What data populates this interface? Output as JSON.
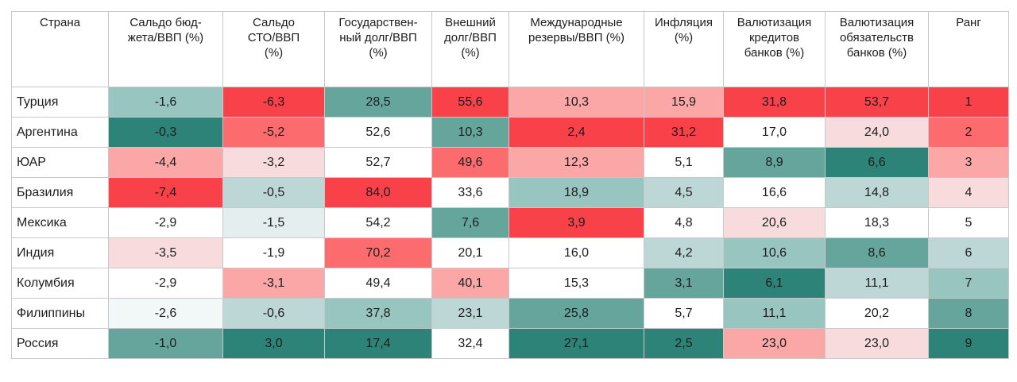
{
  "chart_data": {
    "type": "heatmap",
    "columns": [
      "Страна",
      "Сальдо бюд-\nжета/ВВП (%)",
      "Сальдо\nСТО/ВВП\n(%)",
      "Государствен-\nный долг/ВВП\n(%)",
      "Внешний\nдолг/ВВП\n(%)",
      "Международные\nрезервы/ВВП (%)",
      "Инфляция\n(%)",
      "Валютизация\nкредитов\nбанков (%)",
      "Валютизация\nобязательств\nбанков (%)",
      "Ранг"
    ],
    "rows": [
      {
        "country": "Турция",
        "values": [
          "-1,6",
          "-6,3",
          "28,5",
          "55,6",
          "10,3",
          "15,9",
          "31,8",
          "53,7",
          "1"
        ],
        "colors": [
          "#99c5c0",
          "#f9414a",
          "#65a59c",
          "#f9414a",
          "#fba6a7",
          "#fba6a7",
          "#f9414a",
          "#f9414a",
          "#f9414a"
        ]
      },
      {
        "country": "Аргентина",
        "values": [
          "-0,3",
          "-5,2",
          "52,6",
          "10,3",
          "2,4",
          "31,2",
          "17,0",
          "24,0",
          "2"
        ],
        "colors": [
          "#2d8377",
          "#fc6c6e",
          "#ffffff",
          "#65a59c",
          "#f9414a",
          "#f9414a",
          "#ffffff",
          "#f8dcdd",
          "#fc6c6e"
        ]
      },
      {
        "country": "ЮАР",
        "values": [
          "-4,4",
          "-3,2",
          "52,7",
          "49,6",
          "12,3",
          "5,1",
          "8,9",
          "6,6",
          "3"
        ],
        "colors": [
          "#fba6a7",
          "#f8dcdd",
          "#ffffff",
          "#fc6c6e",
          "#fba6a7",
          "#ffffff",
          "#65a59c",
          "#2d8377",
          "#fba6a7"
        ]
      },
      {
        "country": "Бразилия",
        "values": [
          "-7,4",
          "-0,5",
          "84,0",
          "33,6",
          "18,9",
          "4,5",
          "16,6",
          "14,8",
          "4"
        ],
        "colors": [
          "#f9414a",
          "#bcd7d6",
          "#f9414a",
          "#ffffff",
          "#99c5c0",
          "#bcd7d6",
          "#ffffff",
          "#bcd7d6",
          "#f8dcdd"
        ]
      },
      {
        "country": "Мексика",
        "values": [
          "-2,9",
          "-1,5",
          "54,2",
          "7,6",
          "3,9",
          "4,8",
          "20,6",
          "18,3",
          "5"
        ],
        "colors": [
          "#ffffff",
          "#e4eeef",
          "#ffffff",
          "#65a59c",
          "#f9414a",
          "#ffffff",
          "#f8dcdd",
          "#ffffff",
          "#ffffff"
        ]
      },
      {
        "country": "Индия",
        "values": [
          "-3,5",
          "-1,9",
          "70,2",
          "20,1",
          "16,0",
          "4,2",
          "10,6",
          "8,6",
          "6"
        ],
        "colors": [
          "#f8dcdd",
          "#ffffff",
          "#fc6c6e",
          "#ffffff",
          "#ffffff",
          "#bcd7d6",
          "#99c5c0",
          "#65a59c",
          "#bcd7d6"
        ]
      },
      {
        "country": "Колумбия",
        "values": [
          "-2,9",
          "-3,1",
          "49,4",
          "40,1",
          "15,3",
          "3,1",
          "6,1",
          "11,1",
          "7"
        ],
        "colors": [
          "#ffffff",
          "#fba6a7",
          "#ffffff",
          "#fba6a7",
          "#ffffff",
          "#65a59c",
          "#2d8377",
          "#bcd7d6",
          "#99c5c0"
        ]
      },
      {
        "country": "Филиппины",
        "values": [
          "-2,6",
          "-0,6",
          "37,8",
          "23,1",
          "25,8",
          "5,7",
          "11,1",
          "20,2",
          "8"
        ],
        "colors": [
          "#f2f7f7",
          "#bcd7d6",
          "#99c5c0",
          "#bcd7d6",
          "#65a59c",
          "#ffffff",
          "#99c5c0",
          "#ffffff",
          "#65a59c"
        ]
      },
      {
        "country": "Россия",
        "values": [
          "-1,0",
          "3,0",
          "17,4",
          "32,4",
          "27,1",
          "2,5",
          "23,0",
          "23,0",
          "9"
        ],
        "colors": [
          "#65a59c",
          "#2d8377",
          "#2d8377",
          "#ffffff",
          "#2d8377",
          "#2d8377",
          "#fba6a7",
          "#f8dcdd",
          "#2d8377"
        ]
      }
    ]
  }
}
